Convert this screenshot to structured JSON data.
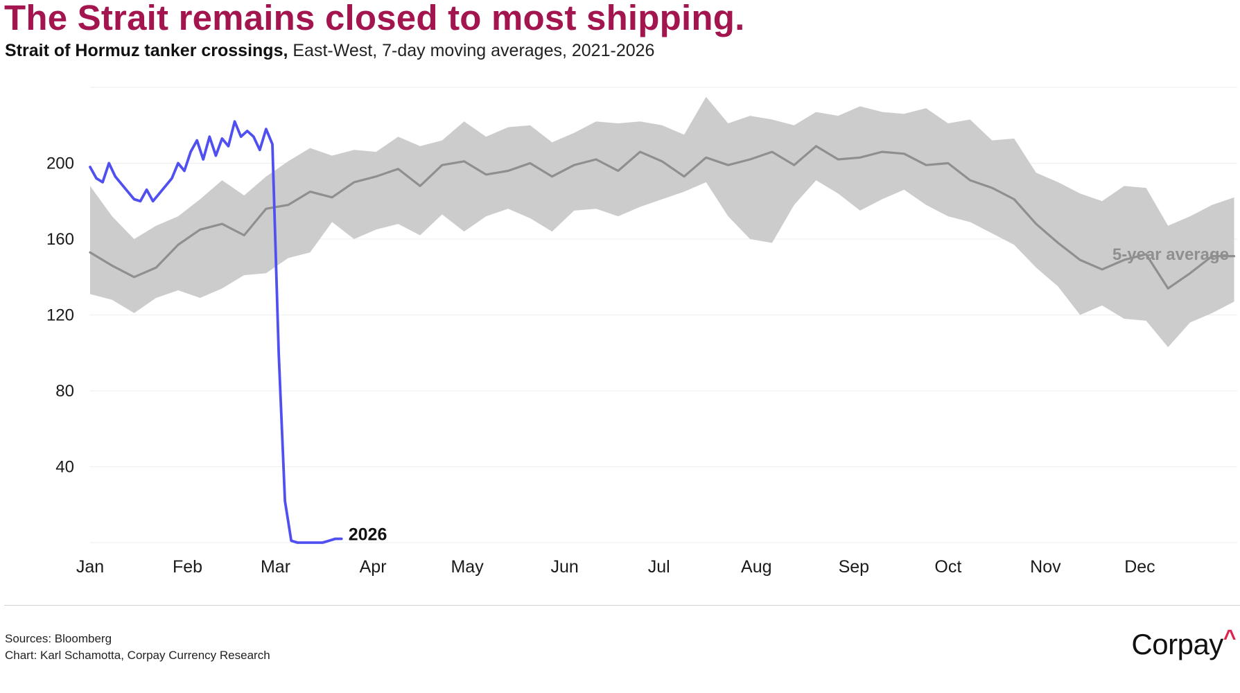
{
  "header": {
    "title": "The Strait remains closed to most shipping.",
    "subtitle_lead": "Strait of Hormuz tanker crossings,",
    "subtitle_rest": " East-West, 7-day moving averages, 2021-2026"
  },
  "footer": {
    "sources": "Sources: Bloomberg",
    "credit": "Chart: Karl Schamotta, Corpay Currency Research",
    "logo_text": "Corpay",
    "logo_mark": "^"
  },
  "colors": {
    "title": "#a3154e",
    "line_2026": "#5050f0",
    "avg_line": "#8f8f8f",
    "range_band": "#cccccc",
    "logo_accent": "#e0204f"
  },
  "chart_data": {
    "type": "line",
    "ylim": [
      0,
      240
    ],
    "yticks": [
      40,
      80,
      120,
      160,
      200
    ],
    "xlim": [
      1,
      366
    ],
    "month_labels": [
      "Jan",
      "Feb",
      "Mar",
      "Apr",
      "May",
      "Jun",
      "Jul",
      "Aug",
      "Sep",
      "Oct",
      "Nov",
      "Dec"
    ],
    "month_start_days": [
      1,
      32,
      60,
      91,
      121,
      152,
      182,
      213,
      244,
      274,
      305,
      335
    ],
    "x_unit": "day of year",
    "series": [
      {
        "name": "5-year average",
        "kind": "line",
        "x": [
          1,
          8,
          15,
          22,
          29,
          36,
          43,
          50,
          57,
          64,
          71,
          78,
          85,
          92,
          99,
          106,
          113,
          120,
          127,
          134,
          141,
          148,
          155,
          162,
          169,
          176,
          183,
          190,
          197,
          204,
          211,
          218,
          225,
          232,
          239,
          246,
          253,
          260,
          267,
          274,
          281,
          288,
          295,
          302,
          309,
          316,
          323,
          330,
          337,
          344,
          351,
          358,
          365
        ],
        "y": [
          153,
          146,
          140,
          145,
          157,
          165,
          168,
          162,
          176,
          178,
          185,
          182,
          190,
          193,
          197,
          188,
          199,
          201,
          194,
          196,
          200,
          193,
          199,
          202,
          196,
          206,
          201,
          193,
          203,
          199,
          202,
          206,
          199,
          209,
          202,
          203,
          206,
          205,
          199,
          200,
          191,
          187,
          181,
          168,
          158,
          149,
          144,
          149,
          152,
          134,
          142,
          151,
          151
        ]
      },
      {
        "name": "5-year range",
        "kind": "band",
        "x": [
          1,
          8,
          15,
          22,
          29,
          36,
          43,
          50,
          57,
          64,
          71,
          78,
          85,
          92,
          99,
          106,
          113,
          120,
          127,
          134,
          141,
          148,
          155,
          162,
          169,
          176,
          183,
          190,
          197,
          204,
          211,
          218,
          225,
          232,
          239,
          246,
          253,
          260,
          267,
          274,
          281,
          288,
          295,
          302,
          309,
          316,
          323,
          330,
          337,
          344,
          351,
          358,
          365
        ],
        "low": [
          131,
          128,
          121,
          129,
          133,
          129,
          134,
          141,
          142,
          150,
          153,
          169,
          160,
          165,
          168,
          162,
          173,
          164,
          172,
          176,
          171,
          164,
          175,
          176,
          172,
          177,
          181,
          185,
          190,
          172,
          160,
          158,
          178,
          191,
          184,
          175,
          181,
          186,
          178,
          172,
          169,
          163,
          157,
          145,
          135,
          120,
          125,
          118,
          117,
          103,
          116,
          121,
          127
        ],
        "high": [
          188,
          172,
          160,
          167,
          172,
          181,
          191,
          183,
          193,
          201,
          208,
          204,
          207,
          206,
          214,
          209,
          212,
          222,
          214,
          219,
          220,
          211,
          216,
          222,
          221,
          222,
          220,
          215,
          235,
          221,
          225,
          223,
          220,
          227,
          225,
          230,
          227,
          226,
          229,
          221,
          223,
          212,
          213,
          195,
          190,
          184,
          180,
          188,
          187,
          167,
          172,
          178,
          182
        ]
      },
      {
        "name": "2026",
        "kind": "line",
        "x": [
          1,
          3,
          5,
          7,
          9,
          11,
          13,
          15,
          17,
          19,
          21,
          23,
          25,
          27,
          29,
          31,
          33,
          35,
          37,
          39,
          41,
          43,
          45,
          47,
          49,
          51,
          53,
          55,
          57,
          59,
          61,
          63,
          65,
          67,
          69,
          71,
          73,
          75,
          77,
          79,
          81
        ],
        "y": [
          198,
          192,
          190,
          200,
          193,
          189,
          185,
          181,
          180,
          186,
          180,
          184,
          188,
          192,
          200,
          196,
          206,
          212,
          202,
          214,
          204,
          213,
          209,
          222,
          214,
          217,
          214,
          207,
          218,
          210,
          100,
          22,
          1,
          0,
          0,
          0,
          0,
          0,
          1,
          2,
          2
        ]
      }
    ],
    "annotations": [
      {
        "text": "5-year average",
        "series": "5-year average"
      },
      {
        "text": "2026",
        "series": "2026"
      }
    ],
    "grid": true,
    "legend": "none"
  }
}
